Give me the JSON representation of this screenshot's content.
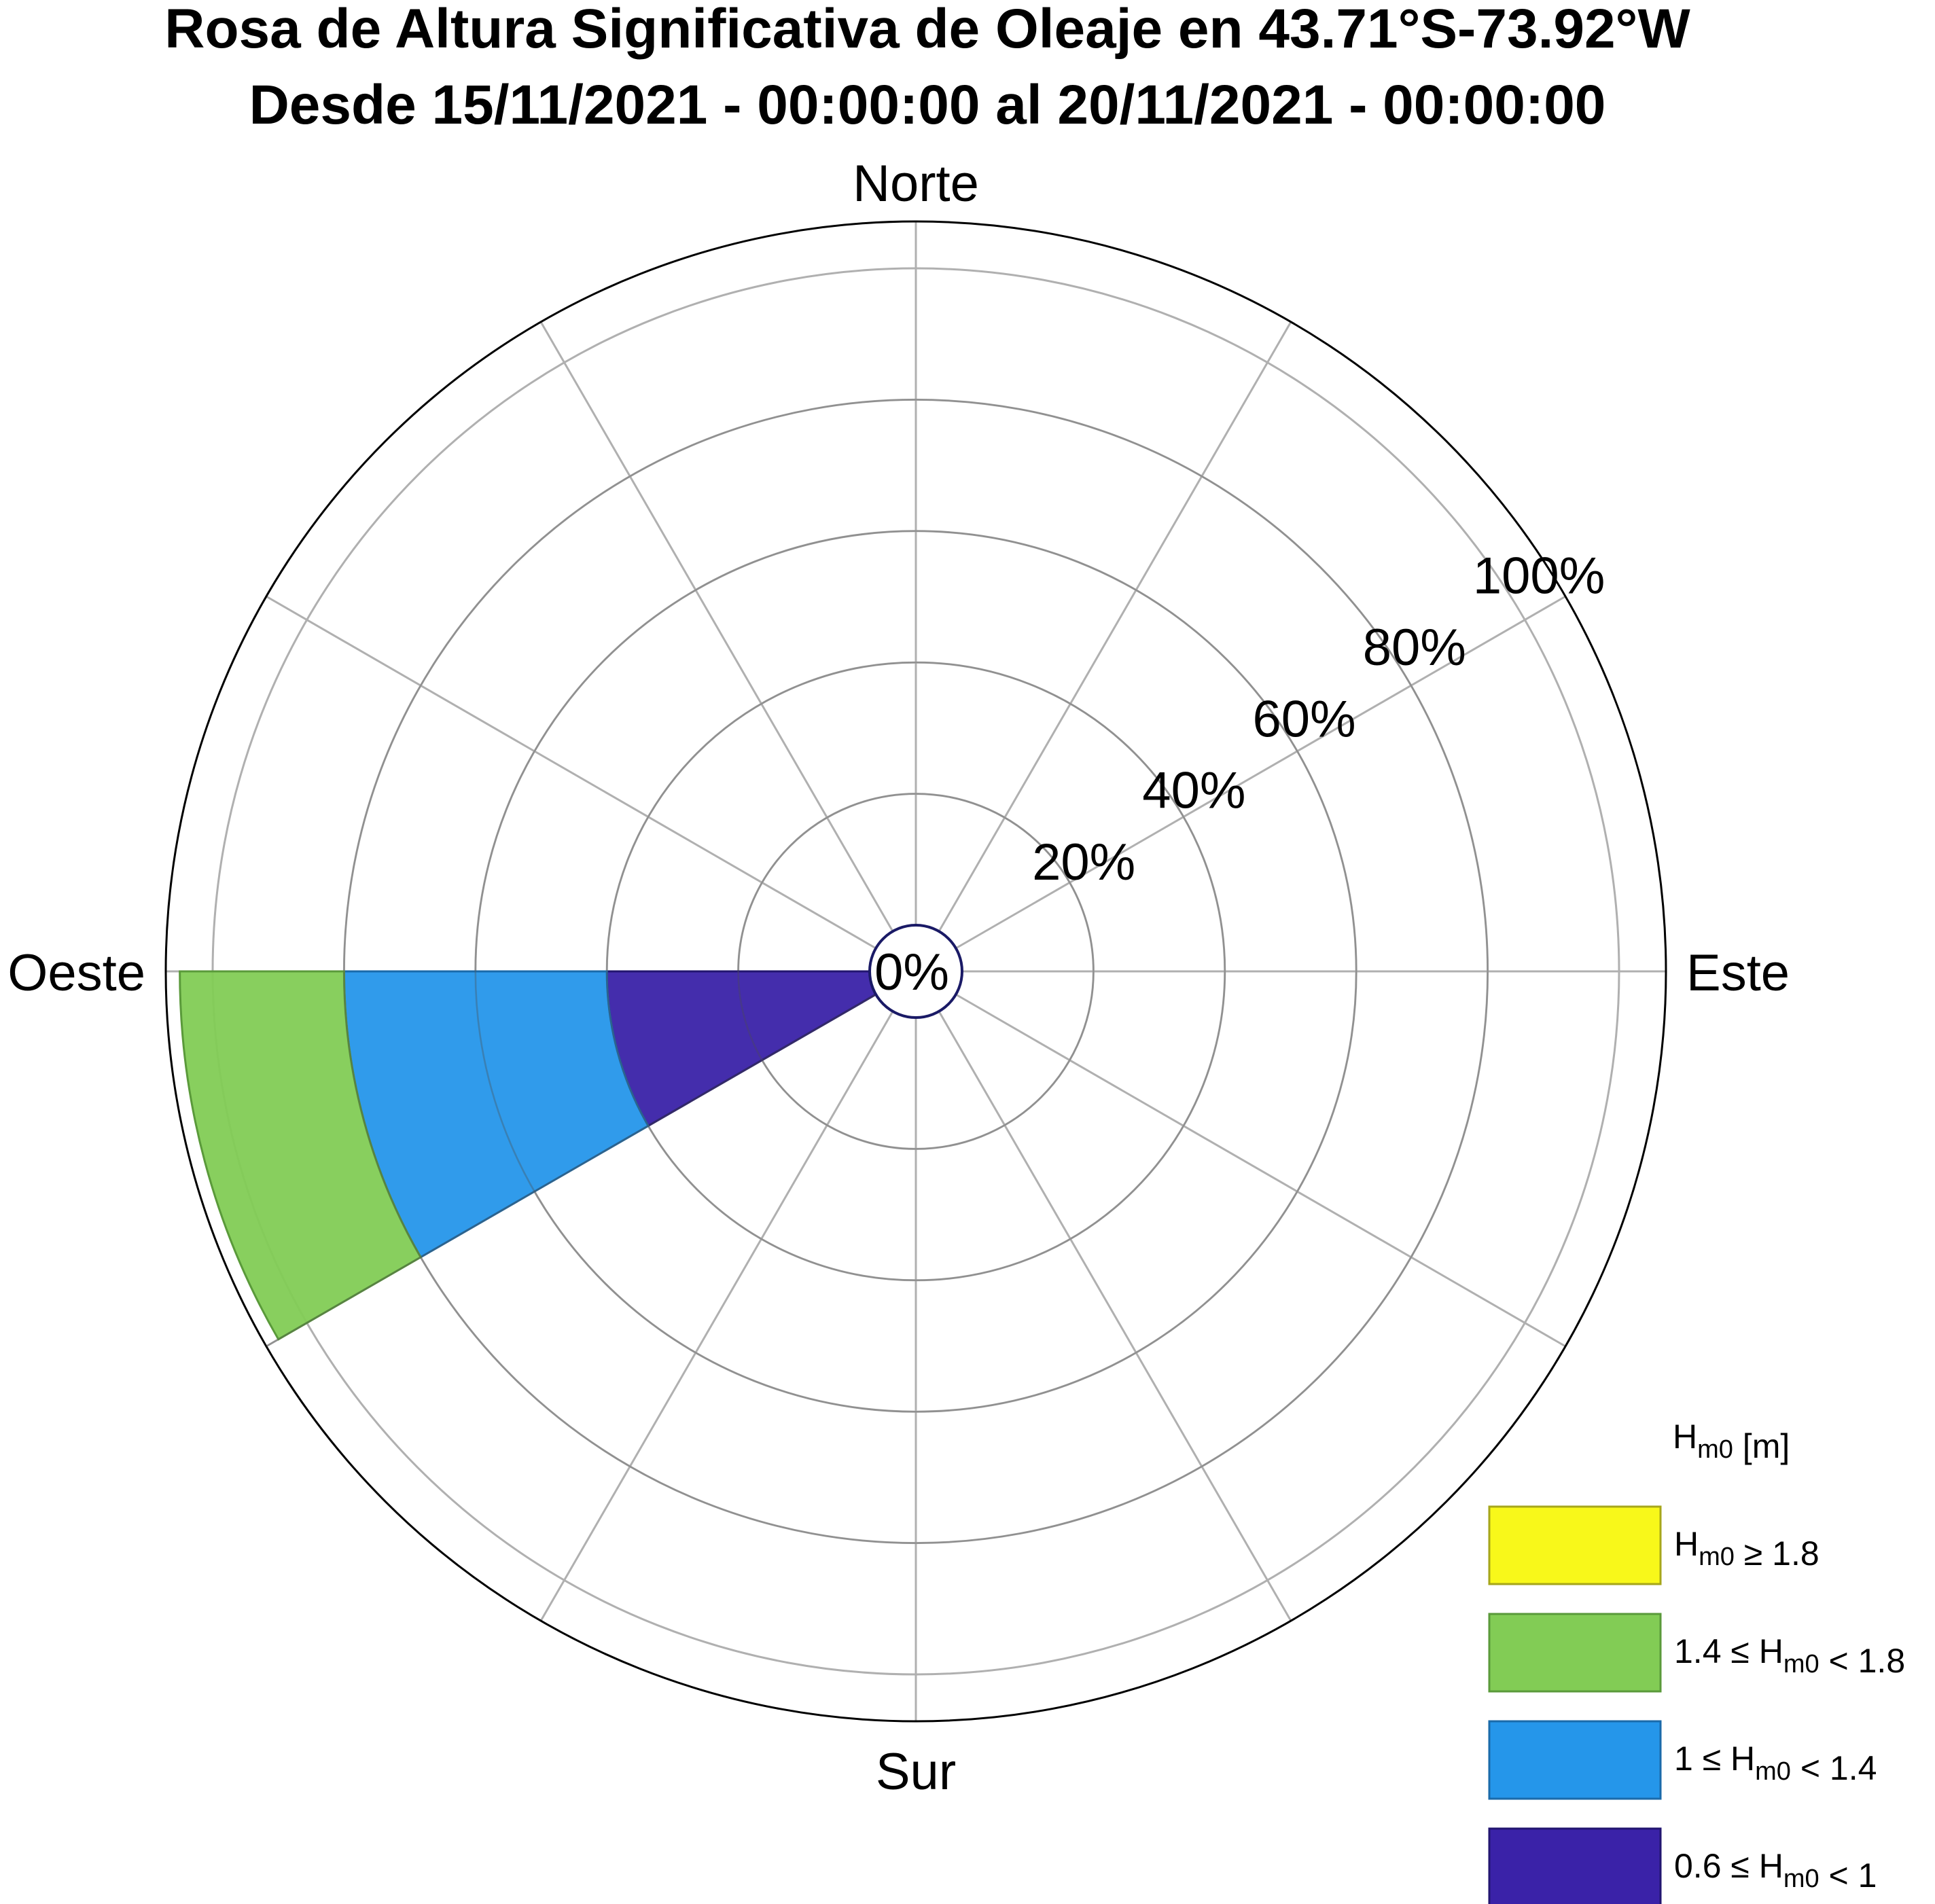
{
  "title_line1": "Rosa de Altura Significativa de Oleaje en 43.71°S-73.92°W",
  "title_line2": "Desde 15/11/2021 - 00:00:00 al 20/11/2021 - 00:00:00",
  "chart_data": {
    "type": "wind-rose",
    "title": "Rosa de Altura Significativa de Oleaje en 43.71°S-73.92°W",
    "subtitle": "Desde 15/11/2021 - 00:00:00 al 20/11/2021 - 00:00:00",
    "directions": [
      "Norte",
      "Este",
      "Sur",
      "Oeste"
    ],
    "sector_count": 12,
    "radial_ticks": [
      0,
      20,
      40,
      60,
      80,
      100
    ],
    "radial_tick_labels": [
      "0%",
      "20%",
      "40%",
      "60%",
      "80%",
      "100%"
    ],
    "rlim": [
      0,
      100
    ],
    "grid": true,
    "series": [
      {
        "name": "0.6 ≤ Hm0 < 1",
        "color": "#3A22A8",
        "direction_deg": 255,
        "from": 0,
        "to": 40
      },
      {
        "name": "1 ≤ Hm0 < 1.4",
        "color": "#2596EA",
        "direction_deg": 255,
        "from": 40,
        "to": 80
      },
      {
        "name": "1.4 ≤ Hm0 < 1.8",
        "color": "#82CC55",
        "direction_deg": 255,
        "from": 80,
        "to": 105
      },
      {
        "name": "Hm0 ≥ 1.8",
        "color": "#F8F81A",
        "direction_deg": 255,
        "from": 0,
        "to": 0
      }
    ],
    "legend": {
      "position": "bottom-right",
      "title": "Hm0 [m]",
      "entries": [
        {
          "label": "Hm0 ≥ 1.8",
          "color": "#F8F81A",
          "border": "#A6A61A"
        },
        {
          "label": "1.4 ≤ Hm0 < 1.8",
          "color": "#82CC55",
          "border": "#5A9A3A"
        },
        {
          "label": "1 ≤ Hm0 < 1.4",
          "color": "#2596EA",
          "border": "#1A6AAA"
        },
        {
          "label": "0.6 ≤ Hm0 < 1",
          "color": "#3A22A8",
          "border": "#221570"
        }
      ]
    }
  }
}
